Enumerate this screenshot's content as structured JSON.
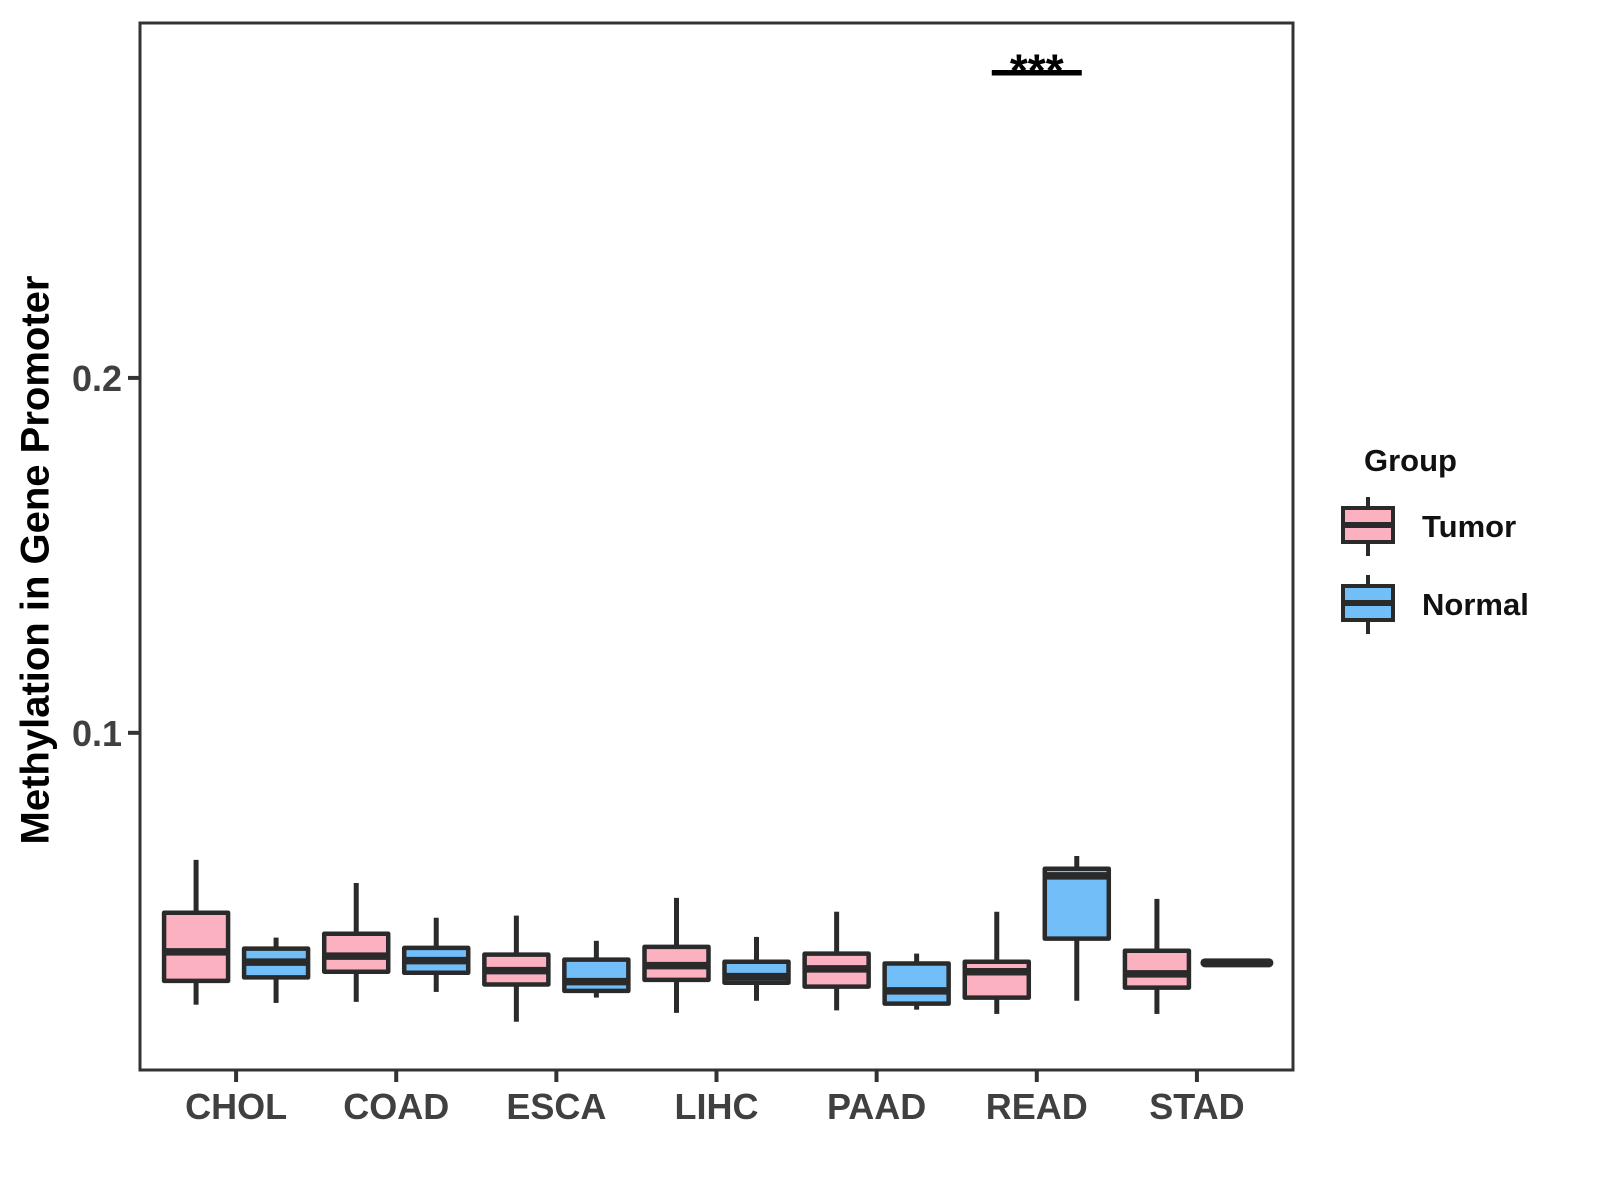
{
  "chart_data": {
    "type": "boxplot",
    "title": "",
    "ylabel": "Methylation in Gene Promoter",
    "xlabel": "",
    "categories": [
      "CHOL",
      "COAD",
      "ESCA",
      "LIHC",
      "PAAD",
      "READ",
      "STAD"
    ],
    "yticks": [
      {
        "value": 0.2,
        "label": "0.2"
      },
      {
        "value": 0.1,
        "label": "0.1"
      }
    ],
    "ylim": [
      0.005,
      0.3
    ],
    "grid": "off",
    "legend_position": "right",
    "series": [
      {
        "name": "Tumor",
        "fill": "#FCB1C1",
        "boxes": [
          {
            "min": 0.0234,
            "q1": 0.0301,
            "median": 0.0383,
            "q3": 0.0493,
            "max": 0.0642
          },
          {
            "min": 0.0242,
            "q1": 0.0327,
            "median": 0.0371,
            "q3": 0.0434,
            "max": 0.0577
          },
          {
            "min": 0.0186,
            "q1": 0.0291,
            "median": 0.033,
            "q3": 0.0375,
            "max": 0.0485
          },
          {
            "min": 0.0211,
            "q1": 0.0304,
            "median": 0.0344,
            "q3": 0.0397,
            "max": 0.0535
          },
          {
            "min": 0.0218,
            "q1": 0.0285,
            "median": 0.0335,
            "q3": 0.0378,
            "max": 0.0496
          },
          {
            "min": 0.0208,
            "q1": 0.0254,
            "median": 0.0327,
            "q3": 0.0355,
            "max": 0.0496
          },
          {
            "min": 0.0208,
            "q1": 0.0282,
            "median": 0.0321,
            "q3": 0.0386,
            "max": 0.0532
          }
        ]
      },
      {
        "name": "Normal",
        "fill": "#72BEF8",
        "boxes": [
          {
            "min": 0.0239,
            "q1": 0.0311,
            "median": 0.0354,
            "q3": 0.0392,
            "max": 0.0423
          },
          {
            "min": 0.027,
            "q1": 0.0324,
            "median": 0.0358,
            "q3": 0.0394,
            "max": 0.0479
          },
          {
            "min": 0.0254,
            "q1": 0.0273,
            "median": 0.0299,
            "q3": 0.0361,
            "max": 0.0414
          },
          {
            "min": 0.0245,
            "q1": 0.0296,
            "median": 0.0313,
            "q3": 0.0355,
            "max": 0.0425
          },
          {
            "min": 0.022,
            "q1": 0.0237,
            "median": 0.0273,
            "q3": 0.035,
            "max": 0.0378
          },
          {
            "min": 0.0245,
            "q1": 0.042,
            "median": 0.0597,
            "q3": 0.0617,
            "max": 0.0653
          },
          {
            "min": 0.0352,
            "q1": 0.0352,
            "median": 0.0352,
            "q3": 0.0352,
            "max": 0.0352
          }
        ]
      }
    ],
    "annotation": {
      "text": "***",
      "category": "READ",
      "line_y": 0.286
    },
    "colors": {
      "box_stroke": "#2A2A2A",
      "axis": "#333333",
      "tick_label": "#404040",
      "annotation": "#000000"
    }
  },
  "legend": {
    "title": "Group",
    "entries": [
      {
        "label": "Tumor",
        "fill": "#FCB1C1"
      },
      {
        "label": "Normal",
        "fill": "#72BEF8"
      }
    ]
  }
}
